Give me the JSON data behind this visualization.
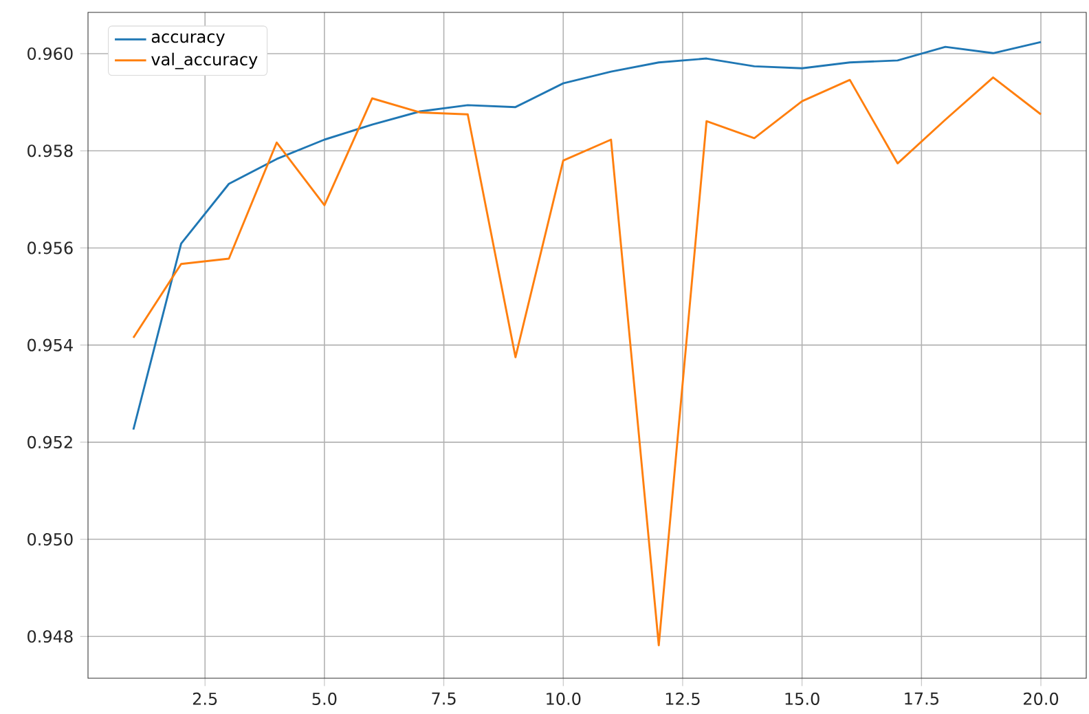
{
  "chart_data": {
    "type": "line",
    "x": [
      1,
      2,
      3,
      4,
      5,
      6,
      7,
      8,
      9,
      10,
      11,
      12,
      13,
      14,
      15,
      16,
      17,
      18,
      19,
      20
    ],
    "series": [
      {
        "name": "accuracy",
        "color": "#1f77b4",
        "values": [
          0.95226,
          0.95609,
          0.95732,
          0.95783,
          0.95823,
          0.95854,
          0.95881,
          0.95894,
          0.9589,
          0.95939,
          0.95963,
          0.95982,
          0.9599,
          0.95974,
          0.9597,
          0.95982,
          0.95986,
          0.96014,
          0.96001,
          0.96024
        ]
      },
      {
        "name": "val_accuracy",
        "color": "#ff7f0e",
        "values": [
          0.95415,
          0.95567,
          0.95578,
          0.95817,
          0.95688,
          0.95908,
          0.95879,
          0.95875,
          0.95375,
          0.9578,
          0.95823,
          0.94782,
          0.95861,
          0.95826,
          0.95902,
          0.95946,
          0.95774,
          0.95864,
          0.95951,
          0.95875
        ]
      }
    ],
    "xlim": [
      0.05,
      20.95
    ],
    "ylim": [
      0.94714,
      0.96085
    ],
    "xticks": [
      {
        "value": 2.5,
        "label": "2.5"
      },
      {
        "value": 5,
        "label": "5.0"
      },
      {
        "value": 7.5,
        "label": "7.5"
      },
      {
        "value": 10,
        "label": "10.0"
      },
      {
        "value": 12.5,
        "label": "12.5"
      },
      {
        "value": 15,
        "label": "15.0"
      },
      {
        "value": 17.5,
        "label": "17.5"
      },
      {
        "value": 20,
        "label": "20.0"
      }
    ],
    "yticks": [
      0.948,
      {
        "value": 0.95,
        "label": "0.950"
      },
      0.952,
      0.954,
      0.956,
      0.958,
      {
        "value": 0.96,
        "label": "0.960"
      }
    ],
    "grid": true,
    "legend": "top left",
    "marker": "none",
    "line_style": "solid"
  }
}
